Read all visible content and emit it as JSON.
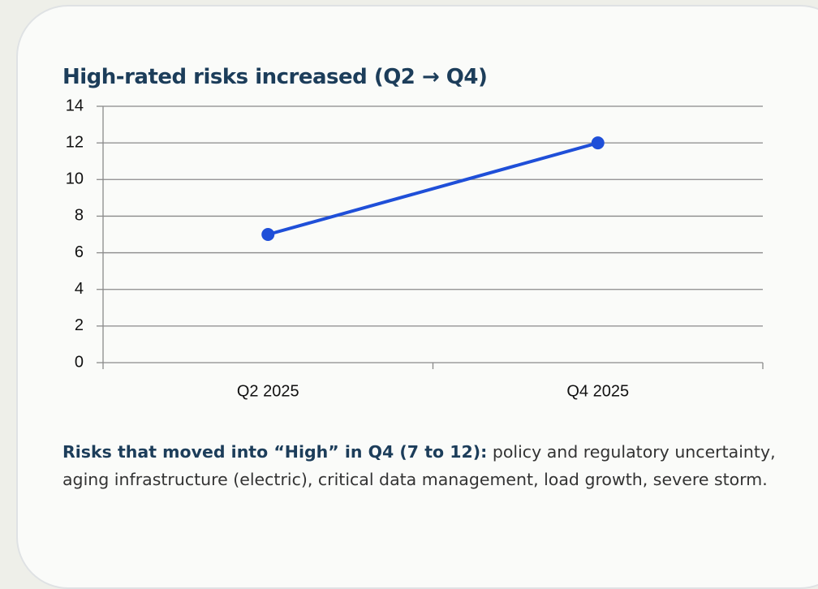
{
  "chart_data": {
    "type": "line",
    "title": "High-rated risks increased (Q2 → Q4)",
    "categories": [
      "Q2 2025",
      "Q4 2025"
    ],
    "values": [
      7,
      12
    ],
    "color": "#1f4fd8",
    "ylim": [
      0,
      14
    ],
    "yticks": [
      0,
      2,
      4,
      6,
      8,
      10,
      12,
      14
    ],
    "grid": true,
    "note_label": "Risks that moved into “High” in Q4 (7 to 12):",
    "note_text": "policy and regulatory uncertainty, aging infrastructure (electric), critical data management, load growth, severe storm."
  }
}
